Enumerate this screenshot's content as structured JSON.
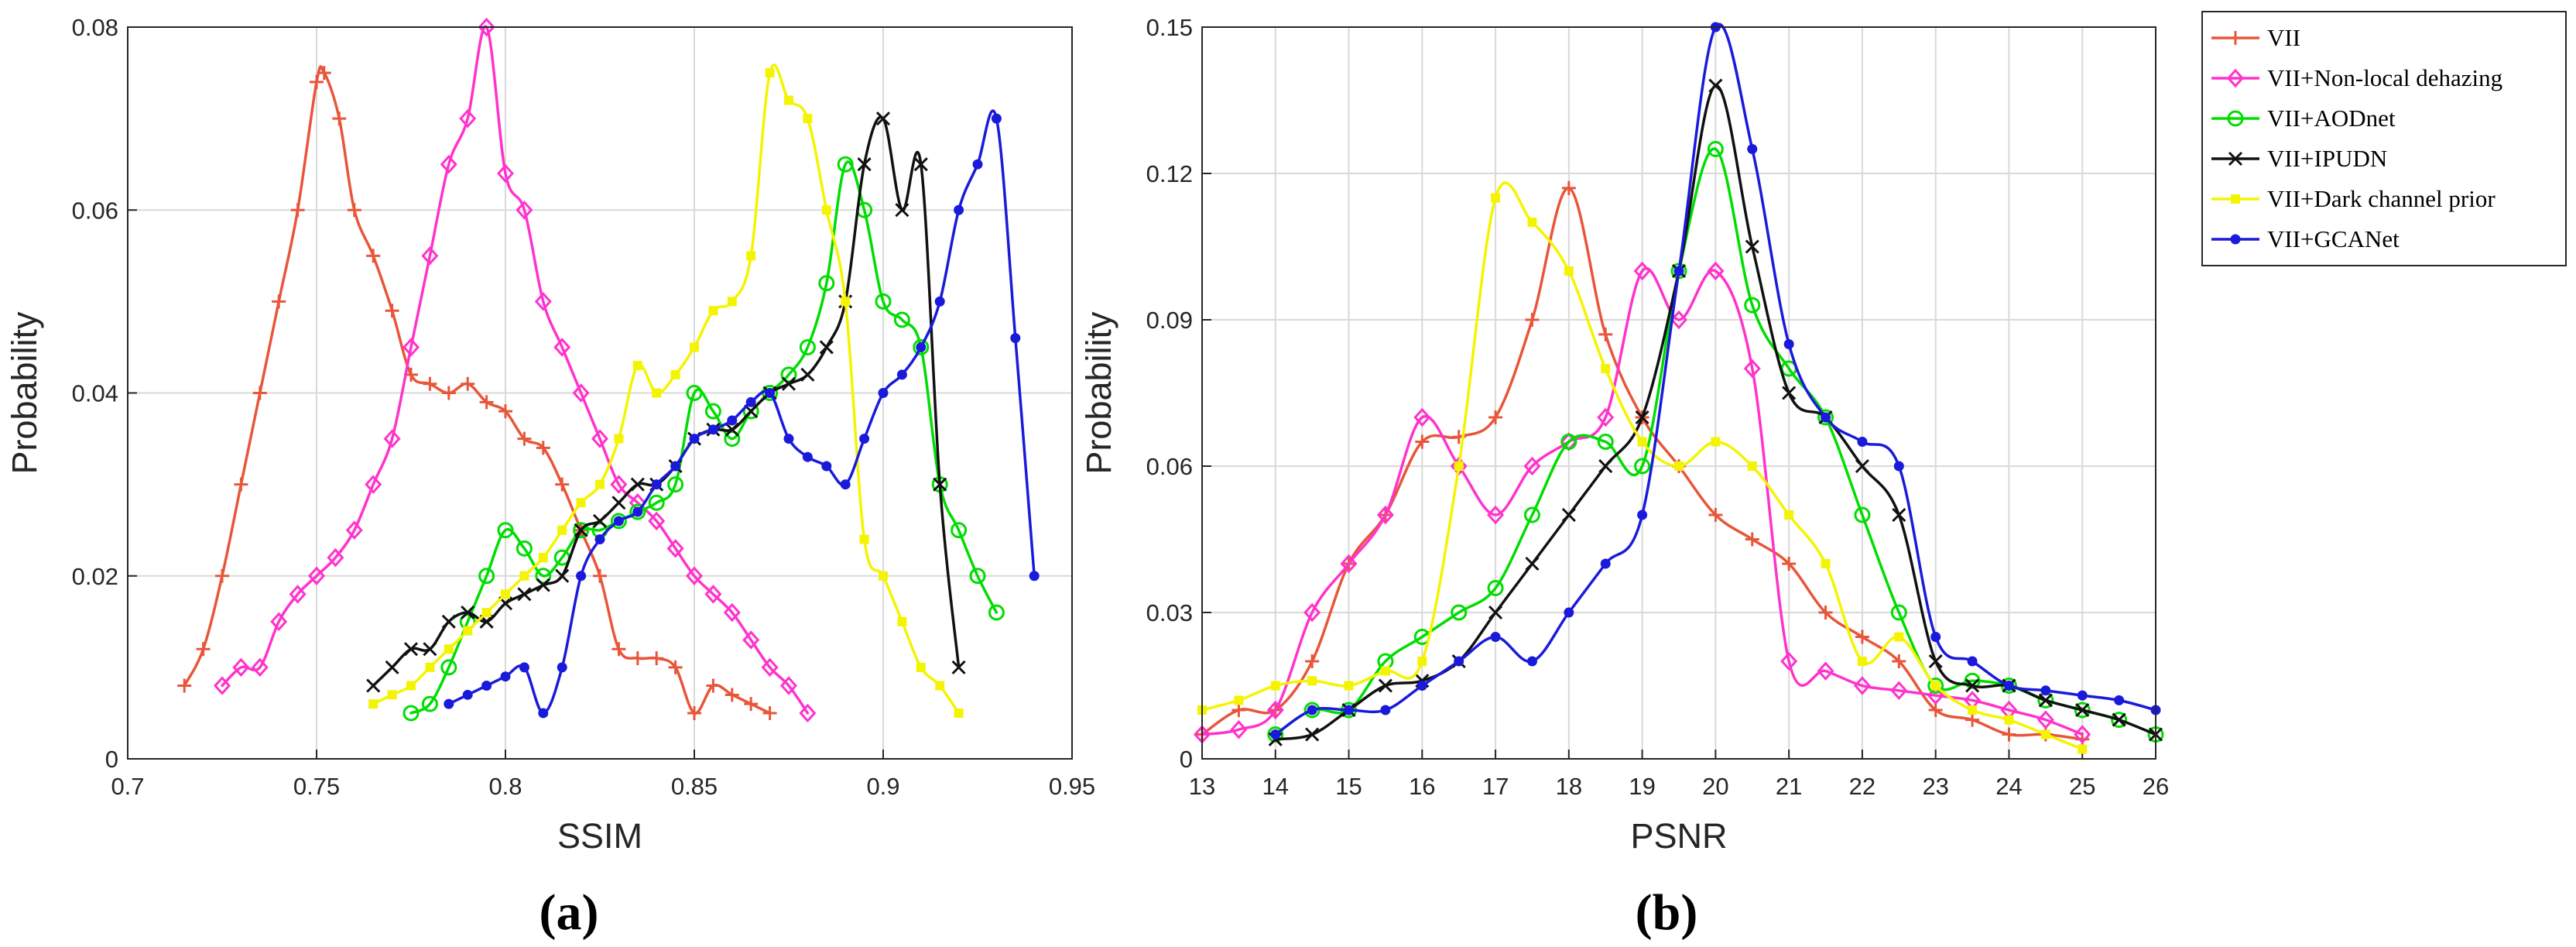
{
  "figure": {
    "legend": [
      {
        "name": "VII",
        "color": "#e8563a",
        "marker": "plus"
      },
      {
        "name": "VII+Non-local dehazing",
        "color": "#ff33cc",
        "marker": "diamond"
      },
      {
        "name": "VII+AODnet",
        "color": "#00dd00",
        "marker": "circle"
      },
      {
        "name": "VII+IPUDN",
        "color": "#111111",
        "marker": "cross"
      },
      {
        "name": "VII+Dark channel prior",
        "color": "#f4f400",
        "marker": "square"
      },
      {
        "name": "VII+GCANet",
        "color": "#1a1adb",
        "marker": "dot"
      }
    ]
  },
  "chart_data": [
    {
      "type": "line",
      "panel_label": "(a)",
      "title": "",
      "xlabel": "SSIM",
      "ylabel": "Probability",
      "xlim": [
        0.7,
        0.95
      ],
      "ylim": [
        0,
        0.08
      ],
      "xticks": [
        0.7,
        0.75,
        0.8,
        0.85,
        0.9,
        0.95
      ],
      "xtick_labels": [
        "0.7",
        "0.75",
        "0.8",
        "0.85",
        "0.9",
        "0.95"
      ],
      "yticks": [
        0,
        0.02,
        0.04,
        0.06,
        0.08
      ],
      "ytick_labels": [
        "0",
        "0.02",
        "0.04",
        "0.06",
        "0.08"
      ],
      "grid": true,
      "series": [
        {
          "name": "VII",
          "x": [
            0.715,
            0.72,
            0.725,
            0.73,
            0.735,
            0.74,
            0.745,
            0.75,
            0.752,
            0.756,
            0.76,
            0.765,
            0.77,
            0.775,
            0.78,
            0.785,
            0.79,
            0.795,
            0.8,
            0.805,
            0.81,
            0.815,
            0.82,
            0.825,
            0.83,
            0.835,
            0.84,
            0.845,
            0.85,
            0.855,
            0.86,
            0.865,
            0.87
          ],
          "y": [
            0.008,
            0.012,
            0.02,
            0.03,
            0.04,
            0.05,
            0.06,
            0.074,
            0.075,
            0.07,
            0.06,
            0.055,
            0.049,
            0.042,
            0.041,
            0.04,
            0.041,
            0.039,
            0.038,
            0.035,
            0.034,
            0.03,
            0.025,
            0.02,
            0.012,
            0.011,
            0.011,
            0.01,
            0.005,
            0.008,
            0.007,
            0.006,
            0.005
          ]
        },
        {
          "name": "VII+Non-local dehazing",
          "x": [
            0.725,
            0.73,
            0.735,
            0.74,
            0.745,
            0.75,
            0.755,
            0.76,
            0.765,
            0.77,
            0.775,
            0.78,
            0.785,
            0.79,
            0.795,
            0.8,
            0.805,
            0.81,
            0.815,
            0.82,
            0.825,
            0.83,
            0.835,
            0.84,
            0.845,
            0.85,
            0.855,
            0.86,
            0.865,
            0.87,
            0.875,
            0.88
          ],
          "y": [
            0.008,
            0.01,
            0.01,
            0.015,
            0.018,
            0.02,
            0.022,
            0.025,
            0.03,
            0.035,
            0.045,
            0.055,
            0.065,
            0.07,
            0.08,
            0.064,
            0.06,
            0.05,
            0.045,
            0.04,
            0.035,
            0.03,
            0.028,
            0.026,
            0.023,
            0.02,
            0.018,
            0.016,
            0.013,
            0.01,
            0.008,
            0.005
          ]
        },
        {
          "name": "VII+AODnet",
          "x": [
            0.775,
            0.78,
            0.785,
            0.79,
            0.795,
            0.8,
            0.805,
            0.81,
            0.815,
            0.82,
            0.825,
            0.83,
            0.835,
            0.84,
            0.845,
            0.85,
            0.855,
            0.86,
            0.865,
            0.87,
            0.875,
            0.88,
            0.885,
            0.89,
            0.895,
            0.9,
            0.905,
            0.91,
            0.915,
            0.92,
            0.925,
            0.93
          ],
          "y": [
            0.005,
            0.006,
            0.01,
            0.015,
            0.02,
            0.025,
            0.023,
            0.02,
            0.022,
            0.025,
            0.025,
            0.026,
            0.027,
            0.028,
            0.03,
            0.04,
            0.038,
            0.035,
            0.038,
            0.04,
            0.042,
            0.045,
            0.052,
            0.065,
            0.06,
            0.05,
            0.048,
            0.045,
            0.03,
            0.025,
            0.02,
            0.016
          ]
        },
        {
          "name": "VII+IPUDN",
          "x": [
            0.765,
            0.77,
            0.775,
            0.78,
            0.785,
            0.79,
            0.795,
            0.8,
            0.805,
            0.81,
            0.815,
            0.82,
            0.825,
            0.83,
            0.835,
            0.84,
            0.845,
            0.85,
            0.855,
            0.86,
            0.865,
            0.87,
            0.875,
            0.88,
            0.885,
            0.89,
            0.895,
            0.9,
            0.905,
            0.91,
            0.915,
            0.92
          ],
          "y": [
            0.008,
            0.01,
            0.012,
            0.012,
            0.015,
            0.016,
            0.015,
            0.017,
            0.018,
            0.019,
            0.02,
            0.025,
            0.026,
            0.028,
            0.03,
            0.03,
            0.032,
            0.035,
            0.036,
            0.036,
            0.038,
            0.04,
            0.041,
            0.042,
            0.045,
            0.05,
            0.065,
            0.07,
            0.06,
            0.065,
            0.03,
            0.01
          ]
        },
        {
          "name": "VII+Dark channel prior",
          "x": [
            0.765,
            0.77,
            0.775,
            0.78,
            0.785,
            0.79,
            0.795,
            0.8,
            0.805,
            0.81,
            0.815,
            0.82,
            0.825,
            0.83,
            0.835,
            0.84,
            0.845,
            0.85,
            0.855,
            0.86,
            0.865,
            0.87,
            0.875,
            0.88,
            0.885,
            0.89,
            0.895,
            0.9,
            0.905,
            0.91,
            0.915,
            0.92
          ],
          "y": [
            0.006,
            0.007,
            0.008,
            0.01,
            0.012,
            0.014,
            0.016,
            0.018,
            0.02,
            0.022,
            0.025,
            0.028,
            0.03,
            0.035,
            0.043,
            0.04,
            0.042,
            0.045,
            0.049,
            0.05,
            0.055,
            0.075,
            0.072,
            0.07,
            0.06,
            0.05,
            0.024,
            0.02,
            0.015,
            0.01,
            0.008,
            0.005
          ]
        },
        {
          "name": "VII+GCANet",
          "x": [
            0.785,
            0.79,
            0.795,
            0.8,
            0.805,
            0.81,
            0.815,
            0.82,
            0.825,
            0.83,
            0.835,
            0.84,
            0.845,
            0.85,
            0.855,
            0.86,
            0.865,
            0.87,
            0.875,
            0.88,
            0.885,
            0.89,
            0.895,
            0.9,
            0.905,
            0.91,
            0.915,
            0.92,
            0.925,
            0.93,
            0.935,
            0.94
          ],
          "y": [
            0.006,
            0.007,
            0.008,
            0.009,
            0.01,
            0.005,
            0.01,
            0.02,
            0.024,
            0.026,
            0.027,
            0.03,
            0.032,
            0.035,
            0.036,
            0.037,
            0.039,
            0.04,
            0.035,
            0.033,
            0.032,
            0.03,
            0.035,
            0.04,
            0.042,
            0.045,
            0.05,
            0.06,
            0.065,
            0.07,
            0.046,
            0.02
          ]
        }
      ]
    },
    {
      "type": "line",
      "panel_label": "(b)",
      "title": "",
      "xlabel": "PSNR",
      "ylabel": "Probability",
      "xlim": [
        13,
        26
      ],
      "ylim": [
        0,
        0.15
      ],
      "xticks": [
        13,
        14,
        15,
        16,
        17,
        18,
        19,
        20,
        21,
        22,
        23,
        24,
        25,
        26
      ],
      "xtick_labels": [
        "13",
        "14",
        "15",
        "16",
        "17",
        "18",
        "19",
        "20",
        "21",
        "22",
        "23",
        "24",
        "25",
        "26"
      ],
      "yticks": [
        0,
        0.03,
        0.06,
        0.09,
        0.12,
        0.15
      ],
      "ytick_labels": [
        "0",
        "0.03",
        "0.06",
        "0.09",
        "0.12",
        "0.15"
      ],
      "grid": true,
      "series": [
        {
          "name": "VII",
          "x": [
            13,
            13.5,
            14,
            14.5,
            15,
            15.5,
            16,
            16.5,
            17,
            17.5,
            18,
            18.5,
            19,
            19.5,
            20,
            20.5,
            21,
            21.5,
            22,
            22.5,
            23,
            23.5,
            24,
            24.5,
            25
          ],
          "y": [
            0.005,
            0.01,
            0.01,
            0.02,
            0.04,
            0.05,
            0.065,
            0.066,
            0.07,
            0.09,
            0.117,
            0.087,
            0.07,
            0.06,
            0.05,
            0.045,
            0.04,
            0.03,
            0.025,
            0.02,
            0.01,
            0.008,
            0.005,
            0.005,
            0.004
          ]
        },
        {
          "name": "VII+Non-local dehazing",
          "x": [
            13,
            13.5,
            14,
            14.5,
            15,
            15.5,
            16,
            16.5,
            17,
            17.5,
            18,
            18.5,
            19,
            19.5,
            20,
            20.5,
            21,
            21.5,
            22,
            22.5,
            23,
            23.5,
            24,
            24.5,
            25
          ],
          "y": [
            0.005,
            0.006,
            0.01,
            0.03,
            0.04,
            0.05,
            0.07,
            0.06,
            0.05,
            0.06,
            0.065,
            0.07,
            0.1,
            0.09,
            0.1,
            0.08,
            0.02,
            0.018,
            0.015,
            0.014,
            0.013,
            0.012,
            0.01,
            0.008,
            0.005
          ]
        },
        {
          "name": "VII+AODnet",
          "x": [
            14,
            14.5,
            15,
            15.5,
            16,
            16.5,
            17,
            17.5,
            18,
            18.5,
            19,
            19.5,
            20,
            20.5,
            21,
            21.5,
            22,
            22.5,
            23,
            23.5,
            24,
            24.5,
            25,
            25.5,
            26
          ],
          "y": [
            0.005,
            0.01,
            0.01,
            0.02,
            0.025,
            0.03,
            0.035,
            0.05,
            0.065,
            0.065,
            0.06,
            0.1,
            0.125,
            0.093,
            0.08,
            0.07,
            0.05,
            0.03,
            0.015,
            0.016,
            0.015,
            0.012,
            0.01,
            0.008,
            0.005
          ]
        },
        {
          "name": "VII+IPUDN",
          "x": [
            14,
            14.5,
            15,
            15.5,
            16,
            16.5,
            17,
            17.5,
            18,
            18.5,
            19,
            19.5,
            20,
            20.5,
            21,
            21.5,
            22,
            22.5,
            23,
            23.5,
            24,
            24.5,
            25,
            25.5,
            26
          ],
          "y": [
            0.004,
            0.005,
            0.01,
            0.015,
            0.016,
            0.02,
            0.03,
            0.04,
            0.05,
            0.06,
            0.07,
            0.1,
            0.138,
            0.105,
            0.075,
            0.07,
            0.06,
            0.05,
            0.02,
            0.015,
            0.015,
            0.012,
            0.01,
            0.008,
            0.005
          ]
        },
        {
          "name": "VII+Dark channel prior",
          "x": [
            13,
            13.5,
            14,
            14.5,
            15,
            15.5,
            16,
            16.5,
            17,
            17.5,
            18,
            18.5,
            19,
            19.5,
            20,
            20.5,
            21,
            21.5,
            22,
            22.5,
            23,
            23.5,
            24,
            24.5,
            25
          ],
          "y": [
            0.01,
            0.012,
            0.015,
            0.016,
            0.015,
            0.018,
            0.02,
            0.06,
            0.115,
            0.11,
            0.1,
            0.08,
            0.065,
            0.06,
            0.065,
            0.06,
            0.05,
            0.04,
            0.02,
            0.025,
            0.015,
            0.01,
            0.008,
            0.005,
            0.002
          ]
        },
        {
          "name": "VII+GCANet",
          "x": [
            14,
            14.5,
            15,
            15.5,
            16,
            16.5,
            17,
            17.5,
            18,
            18.5,
            19,
            19.5,
            20,
            20.5,
            21,
            21.5,
            22,
            22.5,
            23,
            23.5,
            24,
            24.5,
            25,
            25.5,
            26
          ],
          "y": [
            0.005,
            0.01,
            0.01,
            0.01,
            0.015,
            0.02,
            0.025,
            0.02,
            0.03,
            0.04,
            0.05,
            0.1,
            0.15,
            0.125,
            0.085,
            0.07,
            0.065,
            0.06,
            0.025,
            0.02,
            0.015,
            0.014,
            0.013,
            0.012,
            0.01
          ]
        }
      ]
    }
  ]
}
